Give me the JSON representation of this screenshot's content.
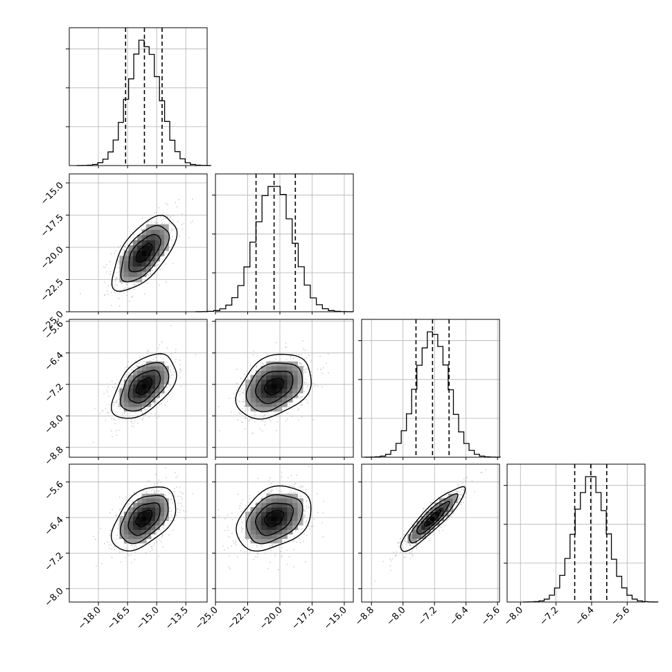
{
  "chart_data": {
    "type": "corner",
    "n_params": 4,
    "grid": true,
    "quantile_lines": "dashed",
    "colors": {
      "line": "#000000",
      "grid": "#b0b0b0",
      "scatter": "#9a9a9a"
    },
    "params": [
      {
        "index": 0,
        "lim": [
          -19.5,
          -12.4
        ],
        "ticks": [
          -18.0,
          -16.5,
          -15.0,
          -13.5
        ],
        "tick_labels": [
          "−18.0",
          "−16.5",
          "−15.0",
          "−13.5"
        ],
        "mean": -15.65,
        "sigma": 0.82,
        "quantiles": [
          -16.6,
          -15.63,
          -14.72
        ]
      },
      {
        "index": 1,
        "lim": [
          -25.0,
          -14.3
        ],
        "ticks": [
          -25.0,
          -22.5,
          -20.0,
          -17.5,
          -15.0
        ],
        "tick_labels": [
          "−25.0",
          "−22.5",
          "−20.0",
          "−17.5",
          "−15.0"
        ],
        "mean": -20.45,
        "sigma": 1.45,
        "quantiles": [
          -21.85,
          -20.45,
          -18.8
        ]
      },
      {
        "index": 2,
        "lim": [
          -9.05,
          -5.55
        ],
        "ticks": [
          -8.8,
          -8.0,
          -7.2,
          -6.4,
          -5.6
        ],
        "tick_labels": [
          "−8.8",
          "−8.0",
          "−7.2",
          "−6.4",
          "−5.6"
        ],
        "mean": -7.25,
        "sigma": 0.41,
        "quantiles": [
          -7.67,
          -7.25,
          -6.83
        ]
      },
      {
        "index": 3,
        "lim": [
          -8.3,
          -5.2
        ],
        "ticks": [
          -8.0,
          -7.2,
          -6.4,
          -5.6
        ],
        "tick_labels": [
          "−8.0",
          "−7.2",
          "−6.4",
          "−5.6"
        ],
        "mean": -6.42,
        "sigma": 0.36,
        "quantiles": [
          -6.78,
          -6.42,
          -6.06
        ]
      }
    ],
    "pair_correlations": [
      {
        "x": 0,
        "y": 1,
        "rho": 0.62
      },
      {
        "x": 0,
        "y": 2,
        "rho": 0.5
      },
      {
        "x": 1,
        "y": 2,
        "rho": 0.33
      },
      {
        "x": 0,
        "y": 3,
        "rho": 0.47
      },
      {
        "x": 1,
        "y": 3,
        "rho": 0.33
      },
      {
        "x": 2,
        "y": 3,
        "rho": 0.9
      }
    ],
    "contour_levels_sigma": [
      0.5,
      1.0,
      1.5,
      2.0
    ]
  }
}
